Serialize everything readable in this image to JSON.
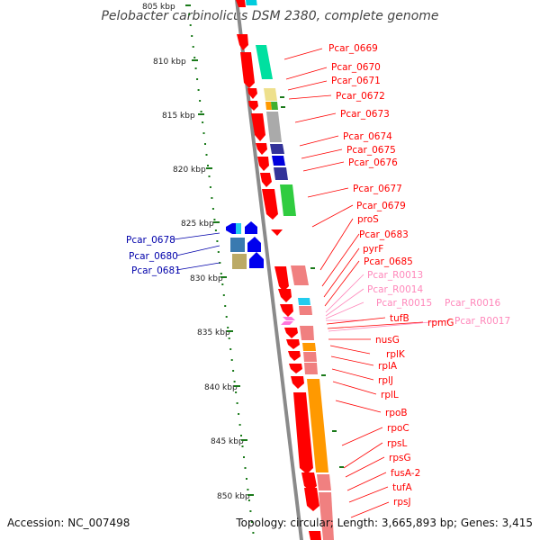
{
  "title": "Pelobacter carbinolicus DSM 2380, complete genome",
  "accession": "Accession: NC_007498",
  "topology": "Topology: circular; Length: 3,665,893 bp; Genes: 3,415",
  "ticks": [
    "805 kbp",
    "810 kbp",
    "815 kbp",
    "820 kbp",
    "825 kbp",
    "830 kbp",
    "835 kbp",
    "840 kbp",
    "845 kbp",
    "850 kbp"
  ],
  "colors": {
    "forward_gene": "#ff0000",
    "reverse_gene": "#0000ff",
    "rna_label": "#ff88bb",
    "backbone": "#808080",
    "tick": "#008000"
  },
  "right_labels": [
    {
      "text": "Pcar_0669",
      "color": "#ff0000"
    },
    {
      "text": "Pcar_0670",
      "color": "#ff0000"
    },
    {
      "text": "Pcar_0671",
      "color": "#ff0000"
    },
    {
      "text": "Pcar_0672",
      "color": "#ff0000"
    },
    {
      "text": "Pcar_0673",
      "color": "#ff0000"
    },
    {
      "text": "Pcar_0674",
      "color": "#ff0000"
    },
    {
      "text": "Pcar_0675",
      "color": "#ff0000"
    },
    {
      "text": "Pcar_0676",
      "color": "#ff0000"
    },
    {
      "text": "Pcar_0677",
      "color": "#ff0000"
    },
    {
      "text": "Pcar_0679",
      "color": "#ff0000"
    },
    {
      "text": "proS",
      "color": "#ff0000"
    },
    {
      "text": "Pcar_0683",
      "color": "#ff0000"
    },
    {
      "text": "pyrF",
      "color": "#ff0000"
    },
    {
      "text": "Pcar_0685",
      "color": "#ff0000"
    },
    {
      "text": "Pcar_R0013",
      "color": "#ff88bb"
    },
    {
      "text": "Pcar_R0014",
      "color": "#ff88bb"
    },
    {
      "text": "Pcar_R0015",
      "color": "#ff88bb"
    },
    {
      "text": "Pcar_R0016",
      "color": "#ff88bb"
    },
    {
      "text": "tufB",
      "color": "#ff0000"
    },
    {
      "text": "rpmG",
      "color": "#ff0000"
    },
    {
      "text": "Pcar_R0017",
      "color": "#ff88bb"
    },
    {
      "text": "nusG",
      "color": "#ff0000"
    },
    {
      "text": "rplK",
      "color": "#ff0000"
    },
    {
      "text": "rplA",
      "color": "#ff0000"
    },
    {
      "text": "rplJ",
      "color": "#ff0000"
    },
    {
      "text": "rplL",
      "color": "#ff0000"
    },
    {
      "text": "rpoB",
      "color": "#ff0000"
    },
    {
      "text": "rpoC",
      "color": "#ff0000"
    },
    {
      "text": "rpsL",
      "color": "#ff0000"
    },
    {
      "text": "rpsG",
      "color": "#ff0000"
    },
    {
      "text": "fusA-2",
      "color": "#ff0000"
    },
    {
      "text": "tufA",
      "color": "#ff0000"
    },
    {
      "text": "rpsJ",
      "color": "#ff0000"
    }
  ],
  "left_labels": [
    {
      "text": "Pcar_0678",
      "color": "#0000aa"
    },
    {
      "text": "Pcar_0680",
      "color": "#0000aa"
    },
    {
      "text": "Pcar_0681",
      "color": "#0000aa"
    }
  ]
}
